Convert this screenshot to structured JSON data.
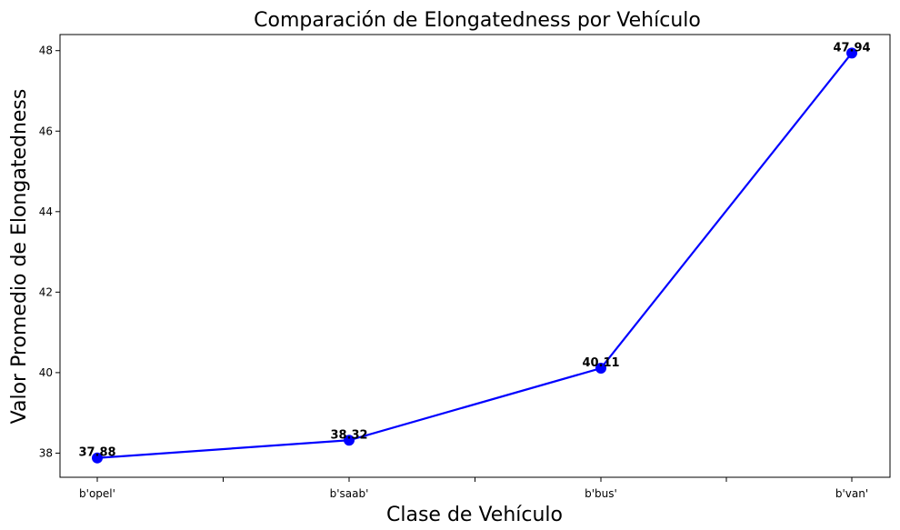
{
  "chart_data": {
    "type": "line",
    "title": "Comparación de Elongatedness por Vehículo",
    "xlabel": "Clase de Vehículo",
    "ylabel": "Valor Promedio de Elongatedness",
    "categories": [
      "b'opel'",
      "b'saab'",
      "b'bus'",
      "b'van'"
    ],
    "series": [
      {
        "values": [
          37.88,
          38.32,
          40.11,
          47.94
        ],
        "color": "#0000ff"
      }
    ],
    "data_labels": [
      "37.88",
      "38.32",
      "40.11",
      "47.94"
    ],
    "yticks": [
      38,
      40,
      42,
      44,
      46,
      48
    ],
    "ylim": [
      37.4,
      48.4
    ],
    "grid": false,
    "legend": "none"
  }
}
